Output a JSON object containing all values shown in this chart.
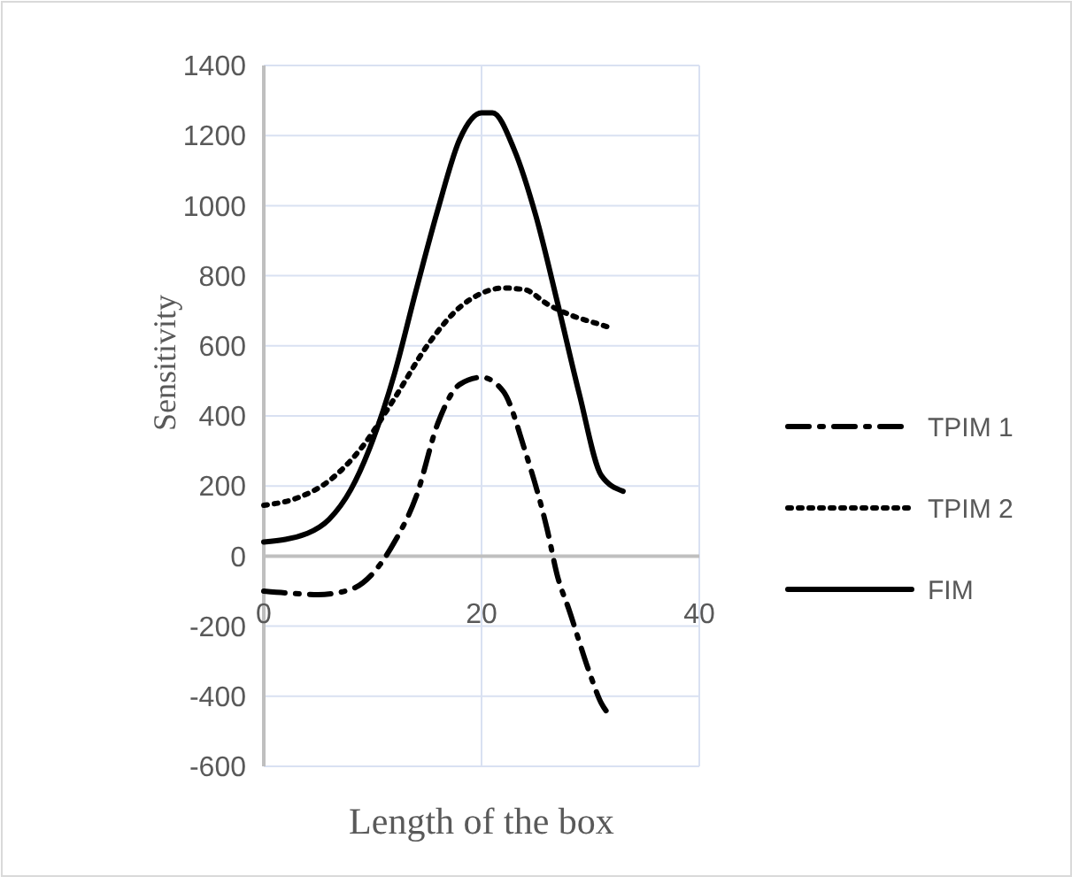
{
  "chart_data": {
    "type": "line",
    "xlabel": "Length of the box",
    "ylabel": "Sensitivity",
    "xlim": [
      0,
      40
    ],
    "xticks": [
      0,
      20,
      40
    ],
    "ylim": [
      -600,
      1400
    ],
    "yticks": [
      -600,
      -400,
      -200,
      0,
      200,
      400,
      600,
      800,
      1000,
      1200,
      1400
    ],
    "grid": true,
    "legend": "right",
    "series": [
      {
        "name": "TPIM 1",
        "color": "#000000",
        "line_style": "dashdot",
        "x": [
          0,
          2,
          5,
          8,
          10,
          12,
          14,
          16,
          18,
          20,
          22,
          24,
          26,
          27,
          28,
          30,
          31,
          32
        ],
        "values": [
          -100,
          -105,
          -110,
          -95,
          -50,
          40,
          170,
          380,
          490,
          510,
          470,
          300,
          80,
          -60,
          -150,
          -340,
          -420,
          -460
        ]
      },
      {
        "name": "TPIM 2",
        "color": "#000000",
        "line_style": "dotted",
        "x": [
          0,
          3,
          6,
          9,
          12,
          15,
          18,
          20,
          22,
          24,
          26,
          28,
          31,
          32
        ],
        "values": [
          145,
          165,
          215,
          310,
          450,
          600,
          710,
          750,
          765,
          760,
          720,
          690,
          660,
          650
        ]
      },
      {
        "name": "FIM",
        "color": "#000000",
        "line_style": "solid",
        "x": [
          0,
          4,
          6,
          8,
          10,
          12,
          14,
          16,
          18,
          20,
          21,
          23,
          25,
          27,
          29,
          31,
          33
        ],
        "values": [
          40,
          65,
          105,
          190,
          330,
          520,
          760,
          990,
          1190,
          1265,
          1265,
          1160,
          970,
          720,
          460,
          230,
          185
        ]
      }
    ]
  }
}
